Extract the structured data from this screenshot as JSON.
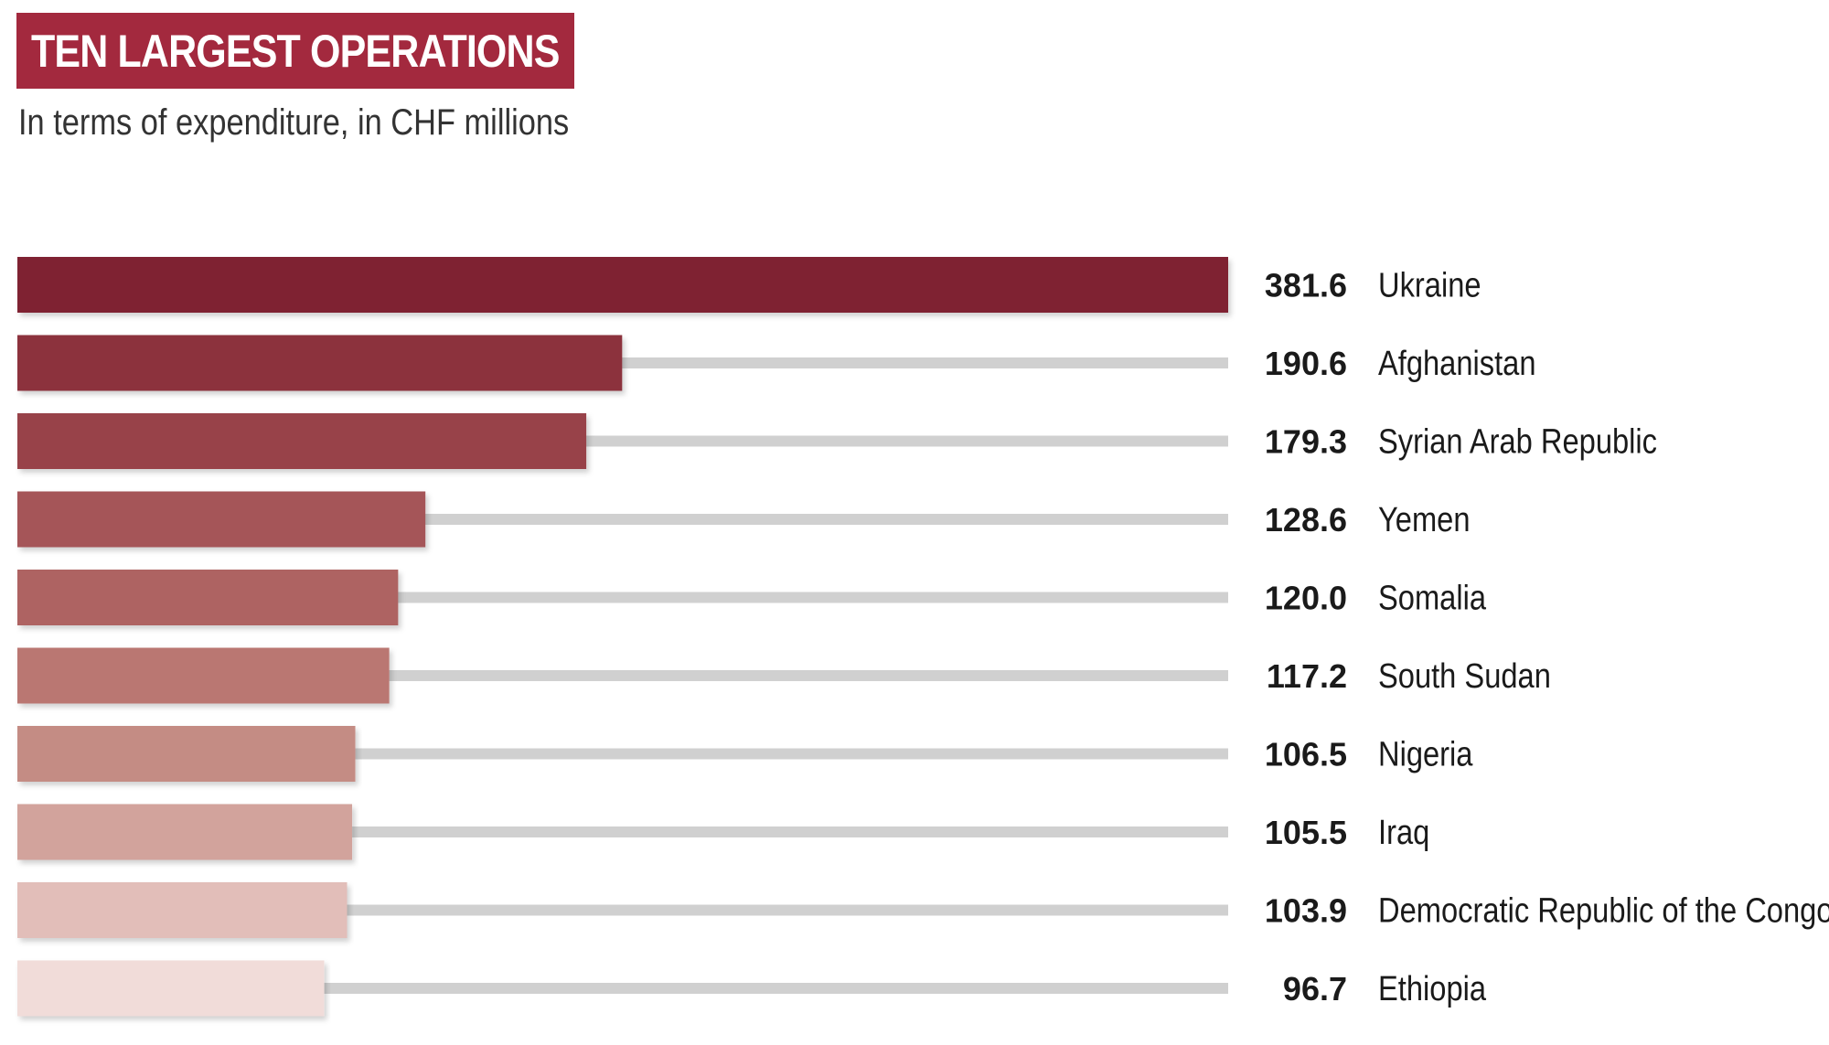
{
  "header": {
    "title": "TEN LARGEST OPERATIONS",
    "subtitle": "In terms of expenditure, in CHF millions"
  },
  "colors": {
    "title_bg": "#a3293e",
    "track": "#d0d0d0",
    "bars": [
      "#7f2231",
      "#8c323c",
      "#984248",
      "#a55558",
      "#ae6462",
      "#ba7772",
      "#c48c84",
      "#d2a39c",
      "#e2beb9",
      "#f1dcd9"
    ]
  },
  "chart_data": {
    "type": "bar",
    "orientation": "horizontal",
    "title": "TEN LARGEST OPERATIONS",
    "subtitle": "In terms of expenditure, in CHF millions",
    "categories": [
      "Ukraine",
      "Afghanistan",
      "Syrian Arab Republic",
      "Yemen",
      "Somalia",
      "South Sudan",
      "Nigeria",
      "Iraq",
      "Democratic Republic of the Congo",
      "Ethiopia"
    ],
    "values": [
      381.6,
      190.6,
      179.3,
      128.6,
      120.0,
      117.2,
      106.5,
      105.5,
      103.9,
      96.7
    ],
    "value_labels": [
      "381.6",
      "190.6",
      "179.3",
      "128.6",
      "120.0",
      "117.2",
      "106.5",
      "105.5",
      "103.9",
      "96.7"
    ],
    "xlim": [
      0,
      381.6
    ],
    "grid": false
  }
}
